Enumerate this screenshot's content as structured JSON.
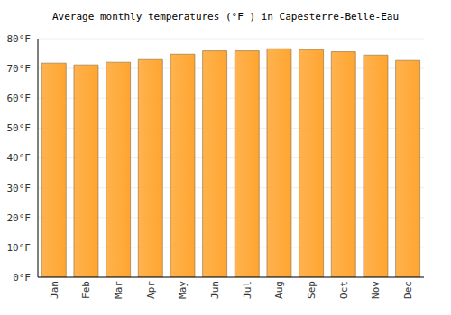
{
  "chart_data": {
    "type": "bar",
    "title": "Average monthly temperatures (°F ) in Capesterre-Belle-Eau",
    "categories": [
      "Jan",
      "Feb",
      "Mar",
      "Apr",
      "May",
      "Jun",
      "Jul",
      "Aug",
      "Sep",
      "Oct",
      "Nov",
      "Dec"
    ],
    "values": [
      71.8,
      71.2,
      72.1,
      73.0,
      74.8,
      75.9,
      75.9,
      76.6,
      76.3,
      75.6,
      74.5,
      72.7
    ],
    "color": "#ffa530",
    "ylim": [
      0,
      80
    ],
    "yticks": [
      {
        "value": 0,
        "label": "0°F"
      },
      {
        "value": 10,
        "label": "10°F"
      },
      {
        "value": 20,
        "label": "20°F"
      },
      {
        "value": 30,
        "label": "30°F"
      },
      {
        "value": 40,
        "label": "40°F"
      },
      {
        "value": 50,
        "label": "50°F"
      },
      {
        "value": 60,
        "label": "60°F"
      },
      {
        "value": 70,
        "label": "70°F"
      },
      {
        "value": 80,
        "label": "80°F"
      }
    ],
    "grid": true
  }
}
